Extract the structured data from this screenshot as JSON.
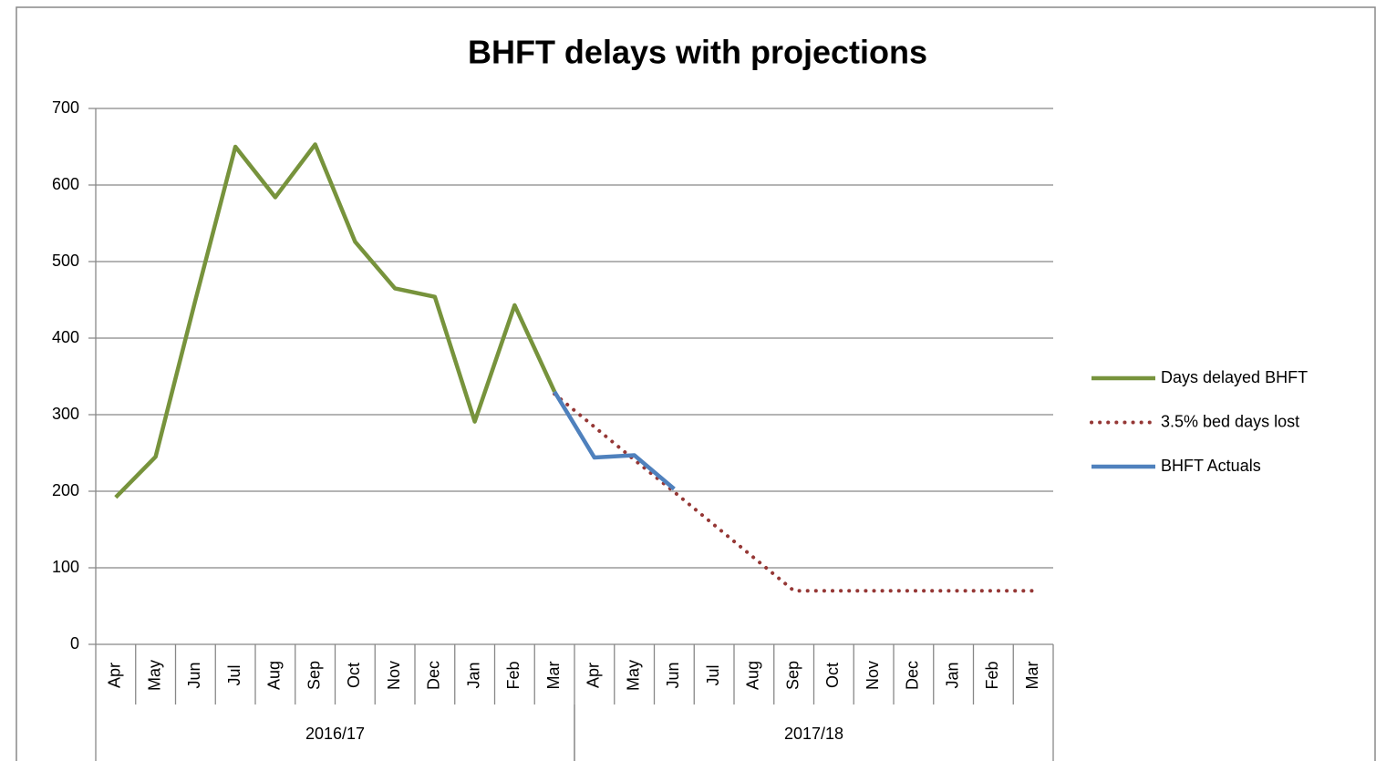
{
  "chart_data": {
    "type": "line",
    "title": "BHFT delays with projections",
    "categories": [
      "Apr",
      "May",
      "Jun",
      "Jul",
      "Aug",
      "Sep",
      "Oct",
      "Nov",
      "Dec",
      "Jan",
      "Feb",
      "Mar",
      "Apr",
      "May",
      "Jun",
      "Jul",
      "Aug",
      "Sep",
      "Oct",
      "Nov",
      "Dec",
      "Jan",
      "Feb",
      "Mar"
    ],
    "groups": [
      {
        "name": "2016/17",
        "size": 12
      },
      {
        "name": "2017/18",
        "size": 12
      }
    ],
    "series": [
      {
        "name": "Days delayed BHFT",
        "color": "#77933c",
        "style": "solid",
        "values": [
          192,
          245,
          450,
          650,
          584,
          653,
          526,
          465,
          454,
          291,
          443,
          330,
          null,
          null,
          null,
          null,
          null,
          null,
          null,
          null,
          null,
          null,
          null,
          null
        ]
      },
      {
        "name": "3.5% bed days lost",
        "color": "#953735",
        "style": "dotted",
        "values": [
          null,
          null,
          null,
          null,
          null,
          null,
          null,
          null,
          null,
          null,
          null,
          327,
          284,
          241,
          199,
          156,
          113,
          70,
          70,
          70,
          70,
          70,
          70,
          70
        ]
      },
      {
        "name": "BHFT Actuals",
        "color": "#4f81bd",
        "style": "solid",
        "values": [
          null,
          null,
          null,
          null,
          null,
          null,
          null,
          null,
          null,
          null,
          null,
          330,
          244,
          247,
          203,
          null,
          null,
          null,
          null,
          null,
          null,
          null,
          null,
          null
        ]
      }
    ],
    "ylim": [
      0,
      700
    ],
    "yticks": [
      0,
      100,
      200,
      300,
      400,
      500,
      600,
      700
    ],
    "grid": true,
    "legend": "right"
  }
}
